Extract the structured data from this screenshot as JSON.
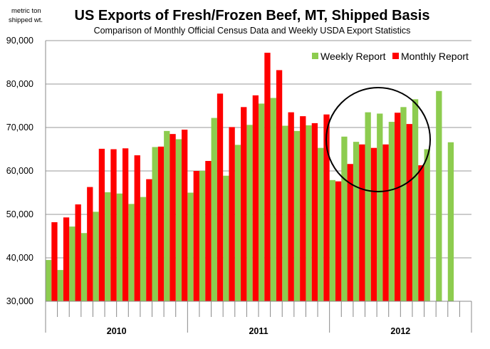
{
  "chart_data": {
    "type": "bar",
    "title": "US Exports of Fresh/Frozen Beef, MT, Shipped Basis",
    "subtitle": "Comparison of Monthly  Official Census Data and Weekly USDA Export Statistics",
    "ylabel_line1": "metric ton",
    "ylabel_line2": "shipped wt.",
    "ylim": [
      30000,
      90000
    ],
    "yticks": [
      30000,
      40000,
      50000,
      60000,
      70000,
      80000,
      90000
    ],
    "ytick_labels": [
      "30,000",
      "40,000",
      "50,000",
      "60,000",
      "70,000",
      "80,000",
      "90,000"
    ],
    "grid": true,
    "legend_position": "top-right",
    "year_groups": [
      {
        "label": "2010",
        "start": 0,
        "end": 12
      },
      {
        "label": "2011",
        "start": 12,
        "end": 24
      },
      {
        "label": "2012",
        "start": 24,
        "end": 36
      }
    ],
    "months": [
      "2010-01",
      "2010-02",
      "2010-03",
      "2010-04",
      "2010-05",
      "2010-06",
      "2010-07",
      "2010-08",
      "2010-09",
      "2010-10",
      "2010-11",
      "2010-12",
      "2011-01",
      "2011-02",
      "2011-03",
      "2011-04",
      "2011-05",
      "2011-06",
      "2011-07",
      "2011-08",
      "2011-09",
      "2011-10",
      "2011-11",
      "2011-12",
      "2012-01",
      "2012-02",
      "2012-03",
      "2012-04",
      "2012-05",
      "2012-06",
      "2012-07",
      "2012-08",
      "2012-09",
      "2012-10",
      "2012-11",
      "2012-12"
    ],
    "series": [
      {
        "name": "Weekly Report",
        "color": "#8dcc4f",
        "values": [
          39500,
          37200,
          47200,
          45700,
          50600,
          55100,
          54800,
          52400,
          54000,
          65500,
          69200,
          67300,
          55000,
          60000,
          72200,
          58900,
          66000,
          70600,
          75500,
          76800,
          70400,
          69200,
          70500,
          65300,
          57900,
          67900,
          66700,
          73500,
          73200,
          71300,
          74700,
          76500,
          65000,
          78400,
          66600,
          null
        ]
      },
      {
        "name": "Monthly Report",
        "color": "#ff0000",
        "values": [
          48200,
          49300,
          52300,
          56300,
          65100,
          65000,
          65200,
          63600,
          58100,
          65600,
          68500,
          69500,
          60000,
          62300,
          77800,
          70100,
          74700,
          77400,
          87200,
          83200,
          73500,
          72600,
          71000,
          73000,
          57600,
          61600,
          66100,
          65300,
          66100,
          73400,
          70800,
          61300,
          null,
          null,
          null,
          null
        ]
      }
    ],
    "annotation": "circle highlighting 2012 weekly report bars exceeding monthly report bars"
  }
}
